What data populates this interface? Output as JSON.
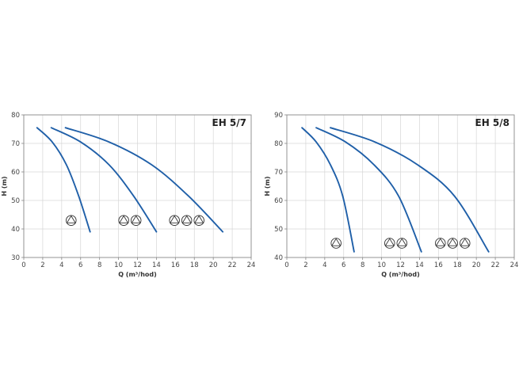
{
  "chart_data": [
    {
      "type": "line",
      "title": "EH 5/7",
      "xlabel": "Q (m³/hod)",
      "ylabel": "H (m)",
      "xlim": [
        0,
        24
      ],
      "ylim": [
        30,
        80
      ],
      "xticks": [
        0,
        2,
        4,
        6,
        8,
        10,
        12,
        14,
        16,
        18,
        20,
        22,
        24
      ],
      "yticks": [
        30,
        40,
        50,
        60,
        70,
        80
      ],
      "grid": true,
      "line_color": "#1f5fa8",
      "series": [
        {
          "pumps": 1,
          "points": [
            [
              1.4,
              75.5
            ],
            [
              3.0,
              70.5
            ],
            [
              4.5,
              62.5
            ],
            [
              5.8,
              51.5
            ],
            [
              7.0,
              39.0
            ]
          ]
        },
        {
          "pumps": 2,
          "points": [
            [
              2.9,
              75.5
            ],
            [
              6.0,
              70.5
            ],
            [
              9.0,
              62.5
            ],
            [
              11.6,
              51.5
            ],
            [
              14.0,
              39.0
            ]
          ]
        },
        {
          "pumps": 3,
          "points": [
            [
              4.4,
              75.5
            ],
            [
              9.0,
              70.5
            ],
            [
              13.5,
              62.5
            ],
            [
              17.4,
              51.5
            ],
            [
              21.0,
              39.0
            ]
          ]
        }
      ],
      "pump_markers": [
        {
          "x": 5.0,
          "y": 43,
          "count": 1
        },
        {
          "x": 11.2,
          "y": 43,
          "count": 2
        },
        {
          "x": 17.2,
          "y": 43,
          "count": 3
        }
      ]
    },
    {
      "type": "line",
      "title": "EH 5/8",
      "xlabel": "Q (m³/hod)",
      "ylabel": "H (m)",
      "xlim": [
        0,
        24
      ],
      "ylim": [
        40,
        90
      ],
      "xticks": [
        0,
        2,
        4,
        6,
        8,
        10,
        12,
        14,
        16,
        18,
        20,
        22,
        24
      ],
      "yticks": [
        40,
        50,
        60,
        70,
        80,
        90
      ],
      "grid": true,
      "line_color": "#1f5fa8",
      "series": [
        {
          "pumps": 1,
          "points": [
            [
              1.6,
              85.5
            ],
            [
              3.1,
              80.5
            ],
            [
              4.6,
              72.5
            ],
            [
              5.9,
              61.5
            ],
            [
              7.1,
              42.0
            ]
          ]
        },
        {
          "pumps": 2,
          "points": [
            [
              3.1,
              85.5
            ],
            [
              6.2,
              80.5
            ],
            [
              9.2,
              72.5
            ],
            [
              11.8,
              61.5
            ],
            [
              14.2,
              42.0
            ]
          ]
        },
        {
          "pumps": 3,
          "points": [
            [
              4.6,
              85.5
            ],
            [
              9.3,
              80.5
            ],
            [
              13.8,
              72.5
            ],
            [
              17.7,
              61.5
            ],
            [
              21.3,
              42.0
            ]
          ]
        }
      ],
      "pump_markers": [
        {
          "x": 5.2,
          "y": 45,
          "count": 1
        },
        {
          "x": 11.5,
          "y": 45,
          "count": 2
        },
        {
          "x": 17.5,
          "y": 45,
          "count": 3
        }
      ]
    }
  ]
}
